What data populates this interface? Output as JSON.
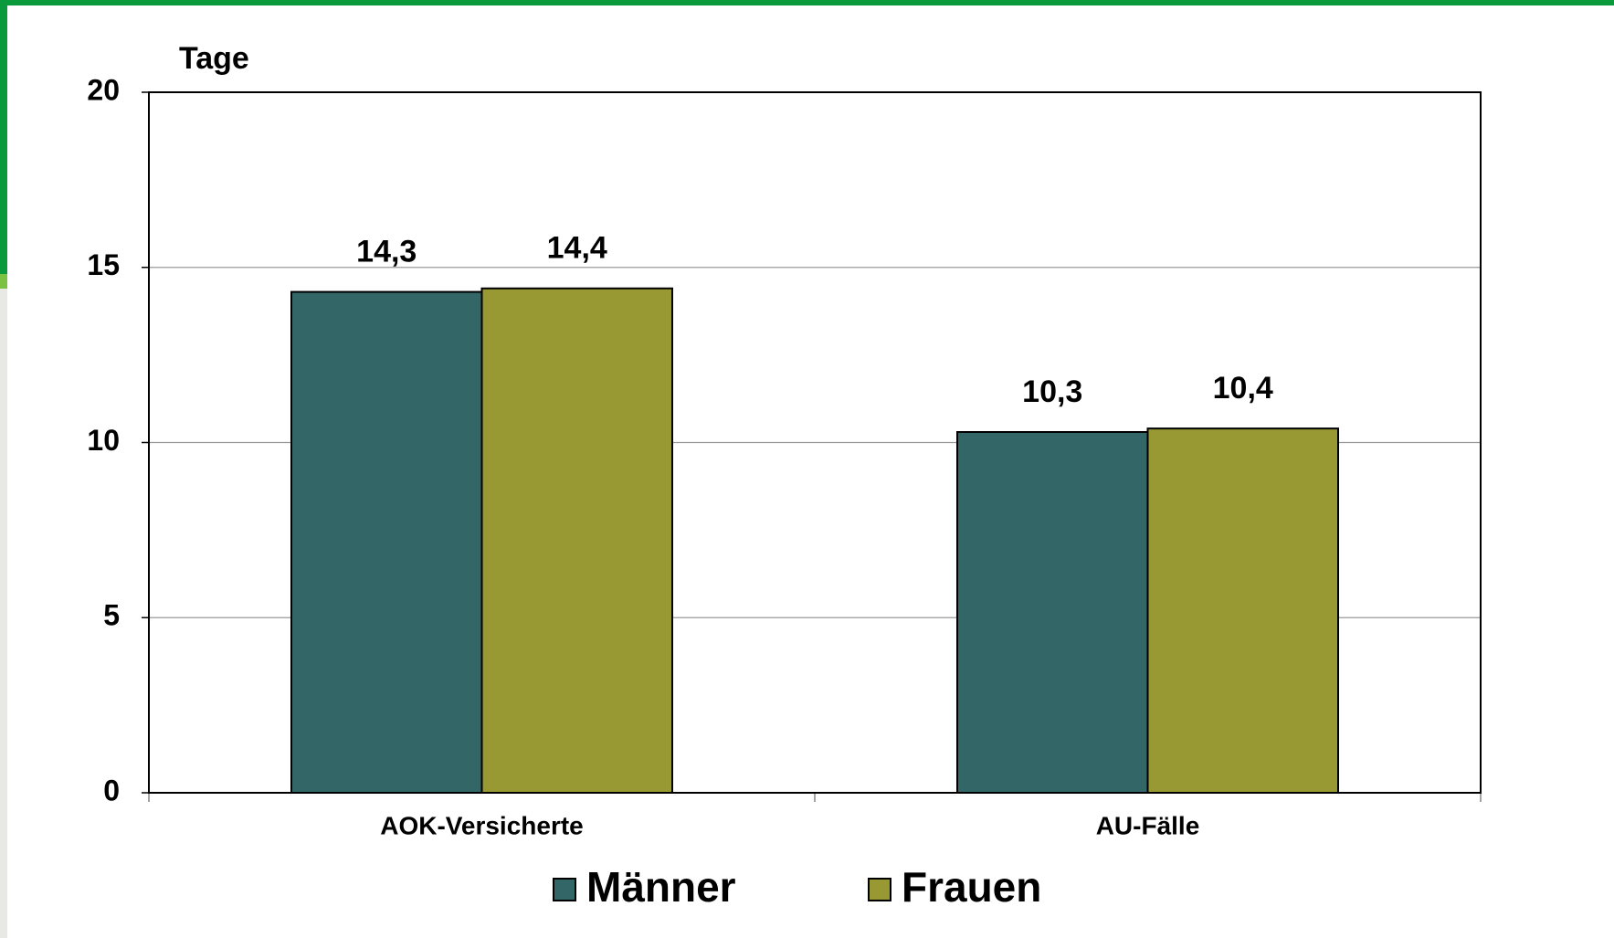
{
  "chart_data": {
    "type": "bar",
    "y_label": "Tage",
    "categories": [
      "AOK-Versicherte",
      "AU-Fälle"
    ],
    "series": [
      {
        "name": "Männer",
        "color": "#336666",
        "values": [
          14.3,
          10.3
        ],
        "value_labels": [
          "14,3",
          "10,3"
        ]
      },
      {
        "name": "Frauen",
        "color": "#999933",
        "values": [
          14.4,
          10.4
        ],
        "value_labels": [
          "14,4",
          "10,4"
        ]
      }
    ],
    "ylim": [
      0,
      20
    ],
    "yticks": [
      0,
      5,
      10,
      15,
      20
    ],
    "grid": true,
    "legend": "bottom"
  }
}
